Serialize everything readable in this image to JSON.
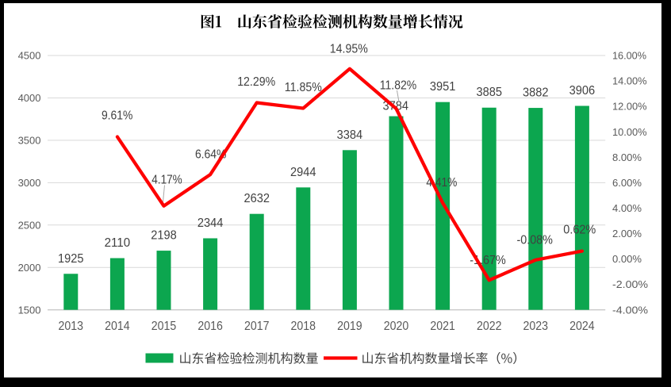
{
  "window": {
    "frame_color": "#000000",
    "panel_color": "#ffffff"
  },
  "title": "图1　山东省检验检测机构数量增长情况",
  "legend": {
    "items": [
      {
        "label": "山东省检验检测机构数量",
        "marker": "bar-swatch",
        "color": "#0ca64f"
      },
      {
        "label": "山东省机构数量增长率（%）",
        "marker": "line-swatch",
        "color": "#fe0000"
      }
    ]
  },
  "chart_data": {
    "type": "combo",
    "title": "图1　山东省检验检测机构数量增长情况",
    "categories": [
      "2013",
      "2014",
      "2015",
      "2016",
      "2017",
      "2018",
      "2019",
      "2020",
      "2021",
      "2022",
      "2023",
      "2024"
    ],
    "series": [
      {
        "name": "山东省检验检测机构数量",
        "type": "bar",
        "axis": "left",
        "color": "#0ca64f",
        "values": [
          1925,
          2110,
          2198,
          2344,
          2632,
          2944,
          3384,
          3784,
          3951,
          3885,
          3882,
          3906
        ],
        "labels": [
          "1925",
          "2110",
          "2198",
          "2344",
          "2632",
          "2944",
          "3384",
          "3784",
          "3951",
          "3885",
          "3882",
          "3906"
        ]
      },
      {
        "name": "山东省机构数量增长率（%）",
        "type": "line",
        "axis": "right",
        "color": "#fe0000",
        "values": [
          null,
          9.61,
          4.17,
          6.64,
          12.29,
          11.85,
          14.95,
          11.82,
          4.41,
          -1.67,
          -0.08,
          0.62
        ],
        "labels": [
          null,
          "9.61%",
          "4.17%",
          "6.64%",
          "12.29%",
          "11.85%",
          "14.95%",
          "11.82%",
          "4.41%",
          "-1.67%",
          "-0.08%",
          "0.62%"
        ]
      }
    ],
    "left_axis": {
      "min": 1500,
      "max": 4500,
      "step": 500,
      "ticks": [
        "4500",
        "4000",
        "3500",
        "3000",
        "2500",
        "2000",
        "1500"
      ]
    },
    "right_axis": {
      "min": -4,
      "max": 16,
      "step": 2,
      "ticks": [
        "16.00%",
        "14.00%",
        "12.00%",
        "10.00%",
        "8.00%",
        "6.00%",
        "4.00%",
        "2.00%",
        "0.00%",
        "-2.00%",
        "-4.00%"
      ]
    },
    "gridlines": "horizontal",
    "legend_position": "bottom"
  }
}
